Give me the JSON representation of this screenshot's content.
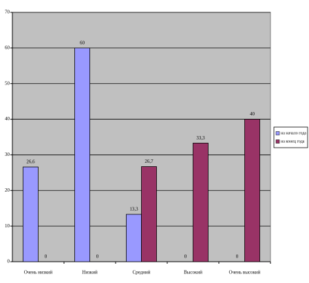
{
  "chart_data": {
    "type": "bar",
    "categories": [
      "Очень низкий",
      "Низкий",
      "Средний",
      "Высокий",
      "Очень высокий"
    ],
    "series": [
      {
        "name": "на начало года",
        "color": "#9999ff",
        "values": [
          26.6,
          60,
          13.3,
          0,
          0
        ],
        "value_labels": [
          "26,6",
          "60",
          "13,3",
          "0",
          "0"
        ]
      },
      {
        "name": "на конец года",
        "color": "#993366",
        "values": [
          0,
          0,
          26.7,
          33.3,
          40
        ],
        "value_labels": [
          "0",
          "0",
          "26,7",
          "33,3",
          "40"
        ]
      }
    ],
    "ylim": [
      0,
      70
    ],
    "yticks": [
      0,
      10,
      20,
      30,
      40,
      50,
      60,
      70
    ],
    "grid": true,
    "legend": "right"
  }
}
